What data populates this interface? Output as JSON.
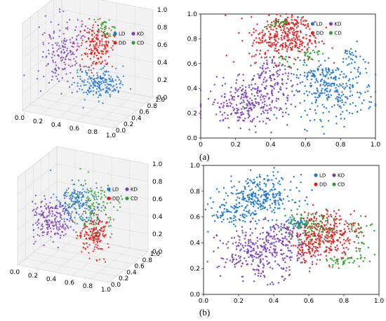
{
  "figure": {
    "captions": [
      "(a)",
      "(b)"
    ]
  },
  "series_meta": [
    {
      "name": "LD",
      "color": "#1f77d0"
    },
    {
      "name": "KD",
      "color": "#7b3fb8"
    },
    {
      "name": "DD",
      "color": "#e02020"
    },
    {
      "name": "CD",
      "color": "#2ca02c"
    }
  ],
  "colors": {
    "LD": "#1f77d0",
    "KD": "#7b3fb8",
    "DD": "#e02020",
    "CD": "#2ca02c",
    "KD_2d": "#a855c8"
  },
  "chart_data": [
    {
      "id": "a-3d",
      "type": "scatter",
      "projection": "3d",
      "x_ticks": [
        "0.0",
        "0.2",
        "0.4",
        "0.6",
        "0.8",
        "1.0"
      ],
      "y_ticks": [
        "0.0",
        "0.2",
        "0.4",
        "0.6",
        "0.8",
        "1.0"
      ],
      "z_ticks": [
        "0.0",
        "0.2",
        "0.4",
        "0.6",
        "0.8",
        "1.0"
      ],
      "legend": [
        "LD",
        "KD",
        "DD",
        "CD"
      ],
      "legend_position": "top-right",
      "grid": true,
      "series": [
        {
          "name": "LD",
          "clusters": [
            {
              "cx": 0.72,
              "cy": 0.3,
              "cz": 0.35,
              "sx": 0.12,
              "sy": 0.12,
              "sz": 0.07,
              "n": 200
            }
          ]
        },
        {
          "name": "KD",
          "clusters": [
            {
              "cx": 0.22,
              "cy": 0.5,
              "cz": 0.55,
              "sx": 0.1,
              "sy": 0.18,
              "sz": 0.18,
              "n": 170
            }
          ]
        },
        {
          "name": "DD",
          "clusters": [
            {
              "cx": 0.55,
              "cy": 0.62,
              "cz": 0.62,
              "sx": 0.08,
              "sy": 0.1,
              "sz": 0.13,
              "n": 190
            }
          ]
        },
        {
          "name": "CD",
          "clusters": [
            {
              "cx": 0.62,
              "cy": 0.66,
              "cz": 0.82,
              "sx": 0.06,
              "sy": 0.06,
              "sz": 0.07,
              "n": 40
            }
          ]
        }
      ]
    },
    {
      "id": "a-2d",
      "type": "scatter",
      "x_ticks": [
        "0",
        "0.2",
        "0.4",
        "0.6",
        "0.8",
        "1.0"
      ],
      "y_ticks": [
        "0.0",
        "0.2",
        "0.4",
        "0.6",
        "0.8",
        "1.0"
      ],
      "xlim": [
        0,
        1
      ],
      "ylim": [
        0,
        1
      ],
      "legend": [
        "LD",
        "KD",
        "DD",
        "CD"
      ],
      "legend_position": "top-right",
      "series": [
        {
          "name": "LD",
          "clusters": [
            {
              "cx": 0.76,
              "cy": 0.38,
              "sx": 0.12,
              "sy": 0.11,
              "n": 260
            },
            {
              "cx": 0.66,
              "cy": 0.52,
              "sx": 0.05,
              "sy": 0.03,
              "n": 40
            },
            {
              "cx": 0.86,
              "cy": 0.65,
              "sx": 0.03,
              "sy": 0.05,
              "n": 30
            }
          ]
        },
        {
          "name": "KD",
          "clusters": [
            {
              "cx": 0.27,
              "cy": 0.27,
              "sx": 0.12,
              "sy": 0.09,
              "n": 240
            },
            {
              "cx": 0.37,
              "cy": 0.47,
              "sx": 0.07,
              "sy": 0.09,
              "n": 120
            }
          ]
        },
        {
          "name": "DD",
          "clusters": [
            {
              "cx": 0.48,
              "cy": 0.8,
              "sx": 0.1,
              "sy": 0.09,
              "n": 280
            },
            {
              "cx": 0.52,
              "cy": 0.93,
              "sx": 0.06,
              "sy": 0.03,
              "n": 60
            }
          ]
        },
        {
          "name": "CD",
          "clusters": [
            {
              "cx": 0.44,
              "cy": 0.93,
              "sx": 0.04,
              "sy": 0.02,
              "n": 25
            },
            {
              "cx": 0.62,
              "cy": 0.68,
              "sx": 0.03,
              "sy": 0.03,
              "n": 25
            },
            {
              "cx": 0.47,
              "cy": 0.62,
              "sx": 0.03,
              "sy": 0.02,
              "n": 12
            }
          ]
        }
      ]
    },
    {
      "id": "b-3d",
      "type": "scatter",
      "projection": "3d",
      "x_ticks": [
        "0.0",
        "0.2",
        "0.4",
        "0.6",
        "0.8",
        "1.0"
      ],
      "y_ticks": [
        "0.0",
        "0.2",
        "0.4",
        "0.6",
        "0.8",
        "1.0"
      ],
      "z_ticks": [
        "0.0",
        "0.2",
        "0.4",
        "0.6",
        "0.8",
        "1.0"
      ],
      "legend": [
        "LD",
        "KD",
        "DD",
        "CD"
      ],
      "legend_position": "top-right",
      "grid": true,
      "series": [
        {
          "name": "LD",
          "clusters": [
            {
              "cx": 0.4,
              "cy": 0.6,
              "cz": 0.55,
              "sx": 0.1,
              "sy": 0.1,
              "sz": 0.12,
              "n": 170
            }
          ]
        },
        {
          "name": "KD",
          "clusters": [
            {
              "cx": 0.2,
              "cy": 0.4,
              "cz": 0.42,
              "sx": 0.1,
              "sy": 0.12,
              "sz": 0.12,
              "n": 190
            }
          ]
        },
        {
          "name": "DD",
          "clusters": [
            {
              "cx": 0.65,
              "cy": 0.45,
              "cz": 0.32,
              "sx": 0.07,
              "sy": 0.1,
              "sz": 0.1,
              "n": 180
            }
          ]
        },
        {
          "name": "CD",
          "clusters": [
            {
              "cx": 0.58,
              "cy": 0.6,
              "cz": 0.55,
              "sx": 0.12,
              "sy": 0.15,
              "sz": 0.18,
              "n": 120
            }
          ]
        }
      ]
    },
    {
      "id": "b-2d",
      "type": "scatter",
      "x_ticks": [
        "0.0",
        "0.2",
        "0.4",
        "0.6",
        "0.8",
        "1.0"
      ],
      "y_ticks": [
        "0.0",
        "0.2",
        "0.4",
        "0.6",
        "0.8",
        "1.0"
      ],
      "xlim": [
        0,
        1
      ],
      "ylim": [
        0,
        1
      ],
      "legend": [
        "LD",
        "KD",
        "DD",
        "CD"
      ],
      "legend_position": "top-right",
      "series": [
        {
          "name": "LD",
          "clusters": [
            {
              "cx": 0.32,
              "cy": 0.76,
              "sx": 0.1,
              "sy": 0.08,
              "n": 280
            },
            {
              "cx": 0.16,
              "cy": 0.62,
              "sx": 0.06,
              "sy": 0.05,
              "n": 70
            },
            {
              "cx": 0.52,
              "cy": 0.55,
              "sx": 0.05,
              "sy": 0.03,
              "n": 50
            }
          ]
        },
        {
          "name": "KD",
          "clusters": [
            {
              "cx": 0.33,
              "cy": 0.32,
              "sx": 0.12,
              "sy": 0.1,
              "n": 300
            },
            {
              "cx": 0.45,
              "cy": 0.45,
              "sx": 0.07,
              "sy": 0.05,
              "n": 60
            }
          ]
        },
        {
          "name": "DD",
          "clusters": [
            {
              "cx": 0.7,
              "cy": 0.48,
              "sx": 0.09,
              "sy": 0.09,
              "n": 300
            },
            {
              "cx": 0.6,
              "cy": 0.35,
              "sx": 0.05,
              "sy": 0.05,
              "n": 60
            }
          ]
        },
        {
          "name": "CD",
          "clusters": [
            {
              "cx": 0.58,
              "cy": 0.52,
              "sx": 0.08,
              "sy": 0.05,
              "n": 90
            },
            {
              "cx": 0.8,
              "cy": 0.26,
              "sx": 0.07,
              "sy": 0.03,
              "n": 40
            },
            {
              "cx": 0.9,
              "cy": 0.45,
              "sx": 0.04,
              "sy": 0.07,
              "n": 30
            }
          ]
        }
      ]
    }
  ]
}
